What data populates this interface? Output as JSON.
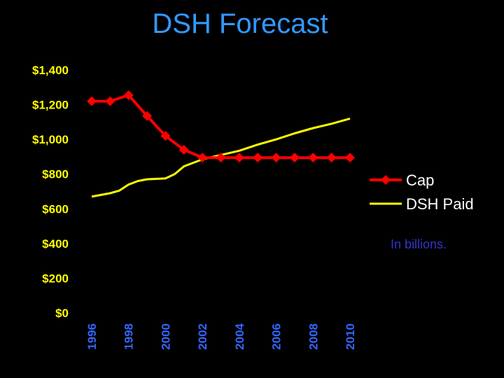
{
  "colors": {
    "background": "#000000",
    "title": "#3399ff",
    "y_ticks": "#ffff00",
    "x_ticks": "#3366ff",
    "cap": "#ff0000",
    "paid": "#ffff00",
    "legend_text": "#ffffff",
    "note": "#3333cc"
  },
  "note": "In billions.",
  "chart_data": {
    "type": "line",
    "title": "DSH Forecast",
    "xlabel": "",
    "ylabel": "",
    "ylim": [
      0,
      1400
    ],
    "xlim": [
      1996,
      2010
    ],
    "grid": false,
    "legend_position": "right",
    "y_tick_labels": [
      "$0",
      "$200",
      "$400",
      "$600",
      "$800",
      "$1,000",
      "$1,200",
      "$1,400"
    ],
    "y_tick_values": [
      0,
      200,
      400,
      600,
      800,
      1000,
      1200,
      1400
    ],
    "x_tick_labels": [
      "1996",
      "1998",
      "2000",
      "2002",
      "2004",
      "2006",
      "2008",
      "2010"
    ],
    "x_tick_values": [
      1996,
      1998,
      2000,
      2002,
      2004,
      2006,
      2008,
      2010
    ],
    "series": [
      {
        "name": "Cap",
        "marker": "diamond",
        "x": [
          1996,
          1997,
          1998,
          1999,
          2000,
          2001,
          2002,
          2003,
          2004,
          2005,
          2006,
          2007,
          2008,
          2009,
          2010
        ],
        "values": [
          1220,
          1220,
          1255,
          1135,
          1020,
          940,
          895,
          895,
          895,
          895,
          895,
          895,
          895,
          895,
          895
        ]
      },
      {
        "name": "DSH Paid",
        "marker": "none",
        "x": [
          1996,
          1997,
          1997.5,
          1998,
          1998.5,
          1999,
          2000,
          2000.5,
          2001,
          2002,
          2003,
          2004,
          2005,
          2006,
          2007,
          2008,
          2009,
          2010
        ],
        "values": [
          670,
          690,
          705,
          740,
          760,
          770,
          775,
          800,
          845,
          885,
          910,
          935,
          970,
          1000,
          1035,
          1065,
          1090,
          1120
        ]
      }
    ]
  }
}
